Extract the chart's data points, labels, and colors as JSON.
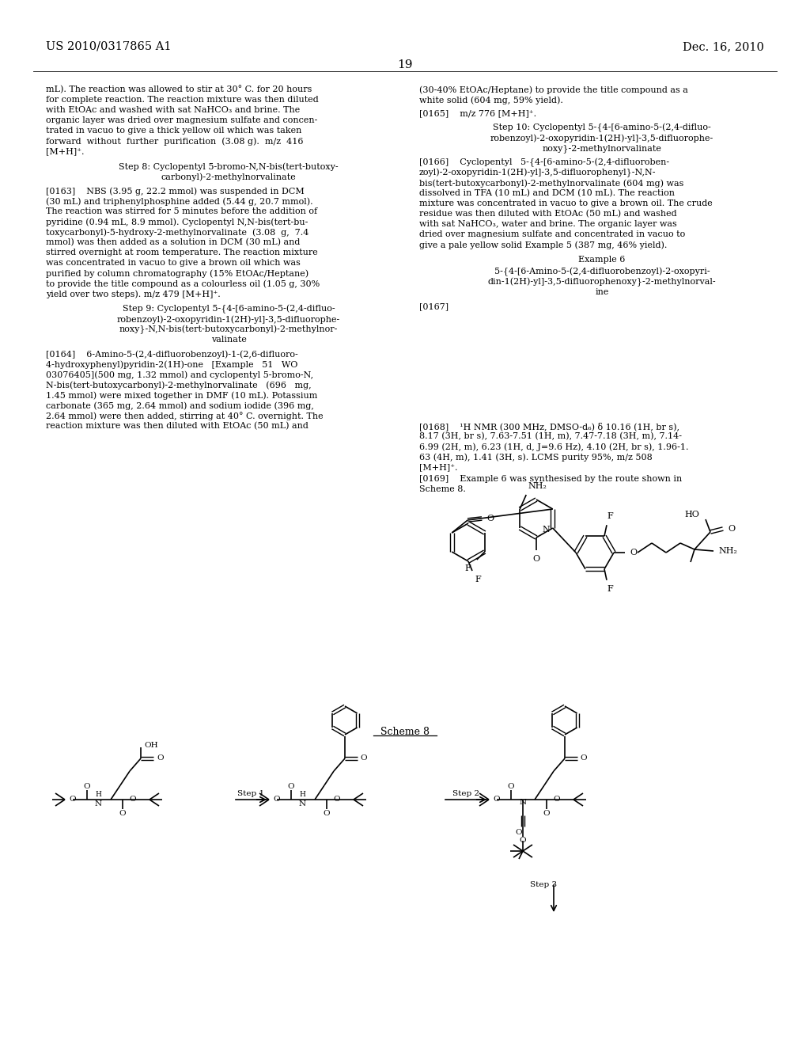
{
  "background_color": "#ffffff",
  "page_header_left": "US 2010/0317865 A1",
  "page_header_right": "Dec. 16, 2010",
  "page_number": "19",
  "figsize": [
    10.24,
    13.2
  ],
  "dpi": 100
}
